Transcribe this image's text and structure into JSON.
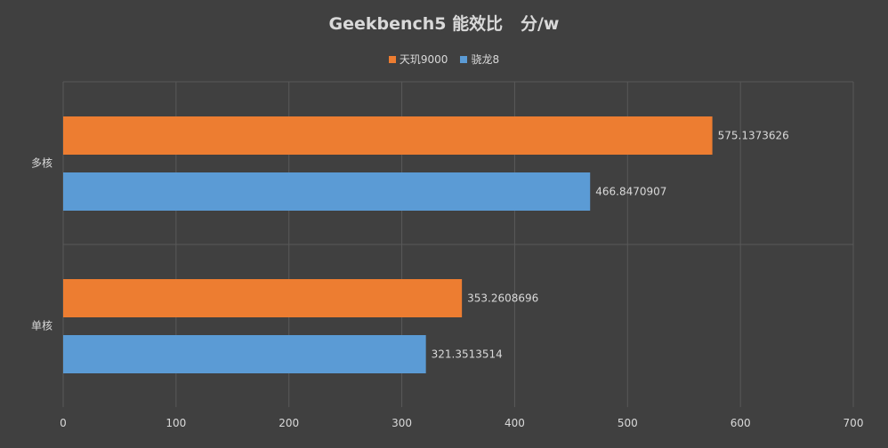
{
  "chart_data": {
    "type": "bar",
    "orientation": "horizontal",
    "title": "Geekbench5 能效比   分/w",
    "categories": [
      "多核",
      "单核"
    ],
    "series": [
      {
        "name": "天玑9000",
        "color": "#ed7d31",
        "values": [
          575.1373626,
          353.2608696
        ]
      },
      {
        "name": "骁龙8",
        "color": "#5b9bd5",
        "values": [
          466.8470907,
          321.3513514
        ]
      }
    ],
    "data_labels": [
      [
        "575.1373626",
        "353.2608696"
      ],
      [
        "466.8470907",
        "321.3513514"
      ]
    ],
    "xlim": [
      0,
      700
    ],
    "xticks": [
      0,
      100,
      200,
      300,
      400,
      500,
      600,
      700
    ],
    "grid": true,
    "legend_position": "top"
  }
}
